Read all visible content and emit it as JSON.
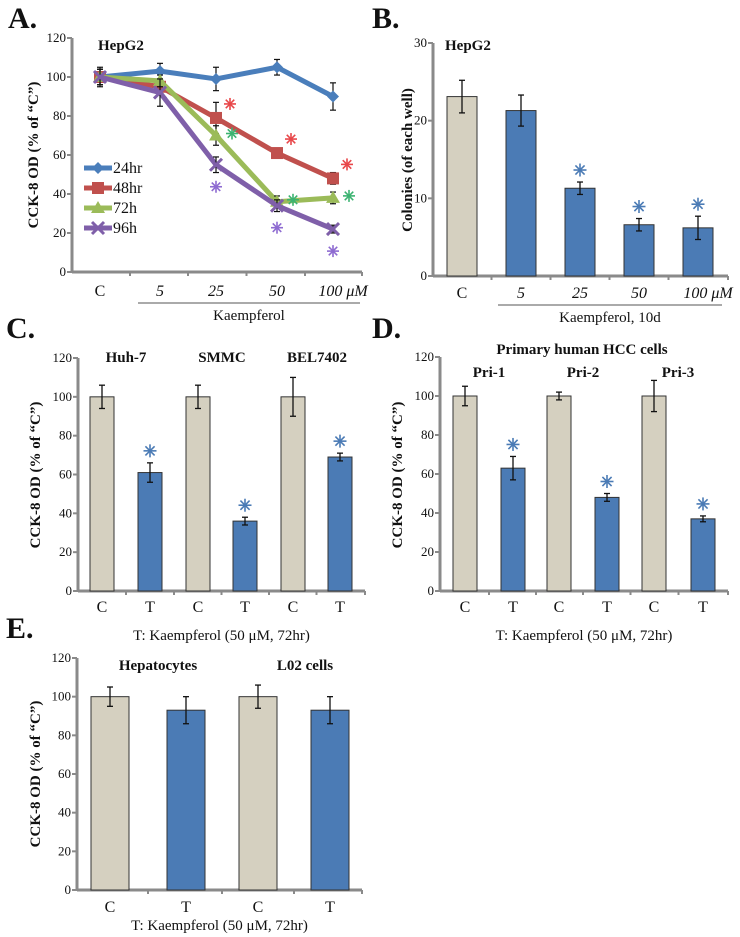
{
  "colors": {
    "control": "#d5d0c0",
    "treated": "#4b7bb5",
    "axis": "#8a8a8a",
    "edge": "#333333",
    "sig_blue": "#4b7bb5"
  },
  "chart_data": [
    {
      "panel": "A.",
      "type": "line",
      "title": "HepG2",
      "ylabel": "CCK-8 OD (% of “C”)",
      "xlabel": "Kaempferol",
      "categories": [
        "C",
        "5",
        "25",
        "50",
        "100 μM"
      ],
      "ylim": [
        0,
        120
      ],
      "yticks": [
        0,
        20,
        40,
        60,
        80,
        100,
        120
      ],
      "legend_position": "left-center",
      "series": [
        {
          "name": "24hr",
          "color": "#4a7ebb",
          "marker": "diamond",
          "values": [
            100,
            103,
            99,
            105,
            90
          ],
          "errors": [
            4,
            4,
            6,
            4,
            7
          ],
          "sig": [
            false,
            false,
            false,
            false,
            false
          ]
        },
        {
          "name": "48hr",
          "color": "#c0504d",
          "marker": "square",
          "values": [
            100,
            95,
            79,
            61,
            48
          ],
          "errors": [
            4,
            3,
            8,
            2,
            3
          ],
          "sig": [
            false,
            false,
            true,
            true,
            true
          ]
        },
        {
          "name": "72h",
          "color": "#9bbb59",
          "marker": "triangle",
          "values": [
            100,
            98,
            70,
            36,
            38
          ],
          "errors": [
            4,
            3,
            5,
            3,
            3
          ],
          "sig": [
            false,
            false,
            true,
            true,
            true
          ]
        },
        {
          "name": "96h",
          "color": "#7f5fa9",
          "marker": "x",
          "values": [
            100,
            92,
            55,
            34,
            22
          ],
          "errors": [
            5,
            7,
            4,
            3,
            2
          ],
          "sig": [
            false,
            false,
            true,
            true,
            true
          ]
        }
      ],
      "sig_colors": [
        "#4a7ebb",
        "#e8474a",
        "#3cb371",
        "#8e6bd1"
      ]
    },
    {
      "panel": "B.",
      "type": "bar",
      "title": "HepG2",
      "ylabel": "Colonies (of each well)",
      "xlabel": "Kaempferol, 10d",
      "categories": [
        "C",
        "5",
        "25",
        "50",
        "100 μM"
      ],
      "values": [
        23.1,
        21.3,
        11.3,
        6.6,
        6.2
      ],
      "errors": [
        2.1,
        2.0,
        0.8,
        0.8,
        1.5
      ],
      "group": [
        "C",
        "T",
        "T",
        "T",
        "T"
      ],
      "sig": [
        false,
        false,
        true,
        true,
        true
      ],
      "ylim": [
        0,
        30
      ],
      "yticks": [
        0,
        10,
        20,
        30
      ]
    },
    {
      "panel": "C.",
      "type": "bar",
      "ylabel": "CCK-8 OD (% of “C”)",
      "xlabel": "T: Kaempferol (50 μM, 72hr)",
      "group_titles": [
        "Huh-7",
        "SMMC",
        "BEL7402"
      ],
      "categories": [
        "C",
        "T",
        "C",
        "T",
        "C",
        "T"
      ],
      "values": [
        100,
        61,
        100,
        36,
        100,
        69
      ],
      "errors": [
        6,
        5,
        6,
        2,
        10,
        2
      ],
      "group": [
        "C",
        "T",
        "C",
        "T",
        "C",
        "T"
      ],
      "sig": [
        false,
        true,
        false,
        true,
        false,
        true
      ],
      "ylim": [
        0,
        120
      ],
      "yticks": [
        0,
        20,
        40,
        60,
        80,
        100,
        120
      ]
    },
    {
      "panel": "D.",
      "type": "bar",
      "title": "Primary human HCC cells",
      "ylabel": "CCK-8 OD (% of “C”)",
      "xlabel": "T: Kaempferol (50 μM, 72hr)",
      "group_titles": [
        "Pri-1",
        "Pri-2",
        "Pri-3"
      ],
      "categories": [
        "C",
        "T",
        "C",
        "T",
        "C",
        "T"
      ],
      "values": [
        100,
        63,
        100,
        48,
        100,
        37
      ],
      "errors": [
        5,
        6,
        2,
        2,
        8,
        1.5
      ],
      "group": [
        "C",
        "T",
        "C",
        "T",
        "C",
        "T"
      ],
      "sig": [
        false,
        true,
        false,
        true,
        false,
        true
      ],
      "ylim": [
        0,
        120
      ],
      "yticks": [
        0,
        20,
        40,
        60,
        80,
        100,
        120
      ]
    },
    {
      "panel": "E.",
      "type": "bar",
      "ylabel": "CCK-8 OD (% of “C”)",
      "xlabel": "T: Kaempferol (50 μM, 72hr)",
      "group_titles": [
        "Hepatocytes",
        "L02 cells"
      ],
      "categories": [
        "C",
        "T",
        "C",
        "T"
      ],
      "values": [
        100,
        93,
        100,
        93
      ],
      "errors": [
        5,
        7,
        6,
        7
      ],
      "group": [
        "C",
        "T",
        "C",
        "T"
      ],
      "sig": [
        false,
        false,
        false,
        false
      ],
      "ylim": [
        0,
        120
      ],
      "yticks": [
        0,
        20,
        40,
        60,
        80,
        100,
        120
      ]
    }
  ]
}
